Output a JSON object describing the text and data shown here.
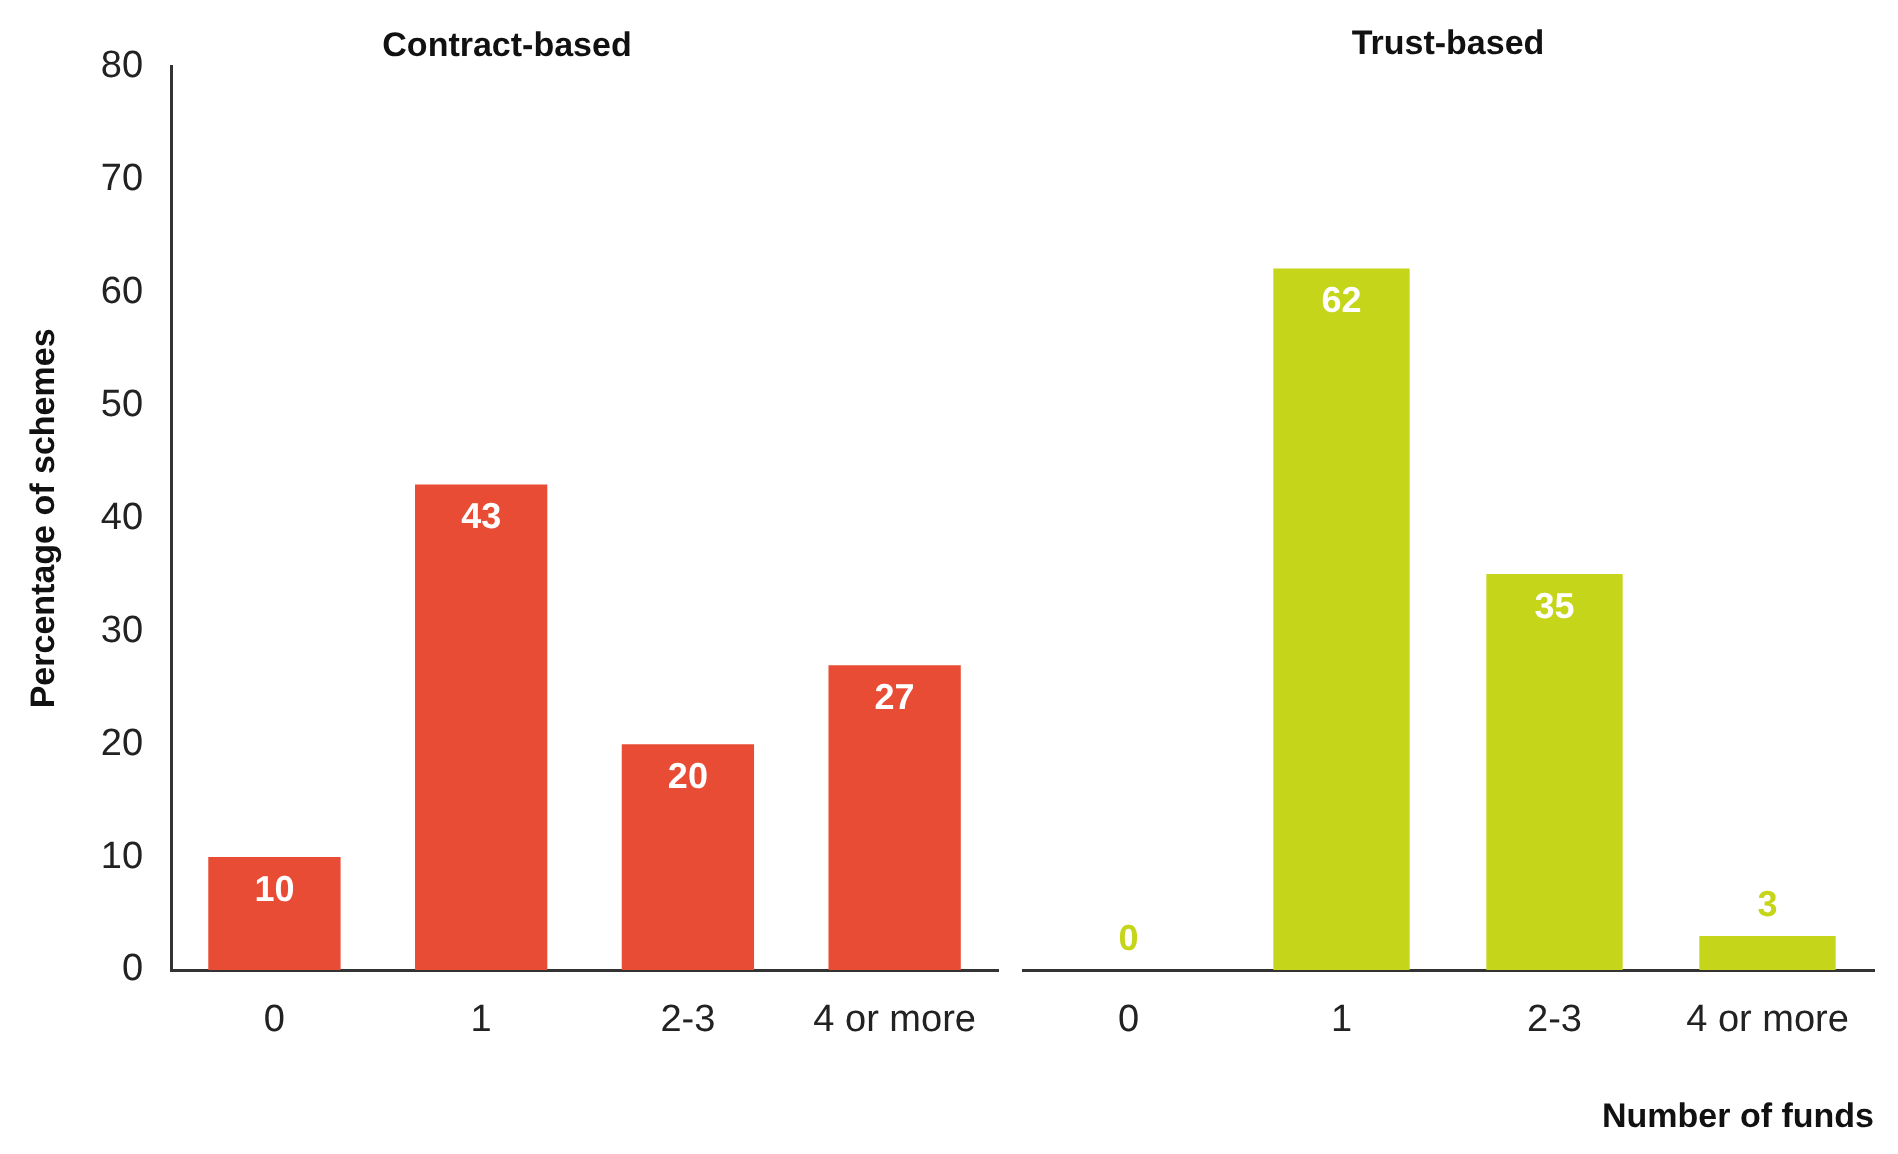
{
  "chart_data": [
    {
      "type": "bar",
      "title": "Contract-based",
      "ylabel": "Percentage of schemes",
      "categories": [
        "0",
        "1",
        "2-3",
        "4 or more"
      ],
      "values": [
        10,
        43,
        20,
        27
      ],
      "color": "#e84c35",
      "ylim": [
        0,
        80
      ],
      "yticks": [
        0,
        10,
        20,
        30,
        40,
        50,
        60,
        70,
        80
      ],
      "grid": false,
      "legend": false,
      "data_labels": true
    },
    {
      "type": "bar",
      "title": "Trust-based",
      "xlabel": "Number of funds",
      "categories": [
        "0",
        "1",
        "2-3",
        "4 or more"
      ],
      "values": [
        0,
        62,
        35,
        3
      ],
      "color": "#c5d51a",
      "ylim": [
        0,
        80
      ],
      "yticks": [
        0,
        10,
        20,
        30,
        40,
        50,
        60,
        70,
        80
      ],
      "grid": false,
      "legend": false,
      "data_labels": true,
      "tick_labels": "x"
    }
  ]
}
